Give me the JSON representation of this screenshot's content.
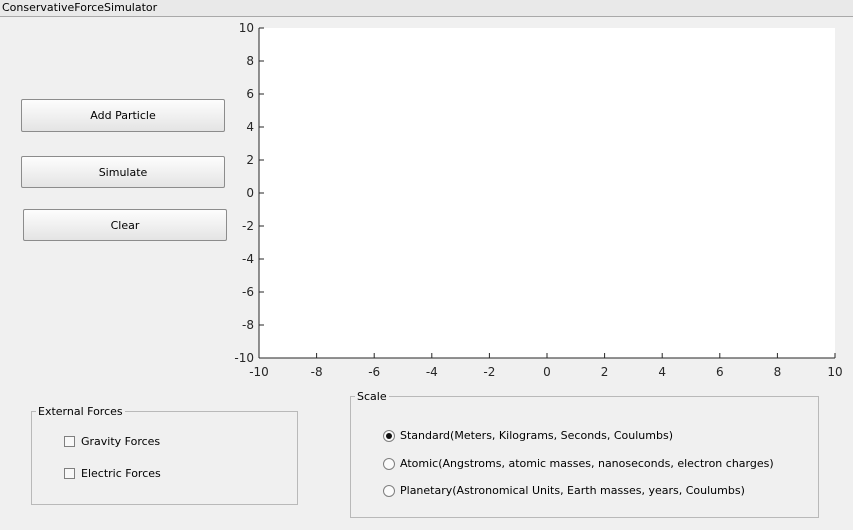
{
  "window": {
    "title": "ConservativeForceSimulator"
  },
  "buttons": {
    "add_particle": "Add Particle",
    "simulate": "Simulate",
    "clear": "Clear"
  },
  "plot": {
    "xlim": [
      -10,
      10
    ],
    "ylim": [
      -10,
      10
    ],
    "x_ticks": [
      "-10",
      "-8",
      "-6",
      "-4",
      "-2",
      "0",
      "2",
      "4",
      "6",
      "8",
      "10"
    ],
    "y_ticks": [
      "10",
      "8",
      "6",
      "4",
      "2",
      "0",
      "-2",
      "-4",
      "-6",
      "-8",
      "-10"
    ]
  },
  "external_forces": {
    "title": "External Forces",
    "options": [
      {
        "label": "Gravity Forces",
        "checked": false
      },
      {
        "label": "Electric Forces",
        "checked": false
      }
    ]
  },
  "scale": {
    "title": "Scale",
    "options": [
      {
        "label": "Standard(Meters, Kilograms, Seconds, Coulumbs)",
        "selected": true
      },
      {
        "label": "Atomic(Angstroms, atomic masses, nanoseconds, electron charges)",
        "selected": false
      },
      {
        "label": "Planetary(Astronomical Units, Earth masses, years, Coulumbs)",
        "selected": false
      }
    ]
  }
}
